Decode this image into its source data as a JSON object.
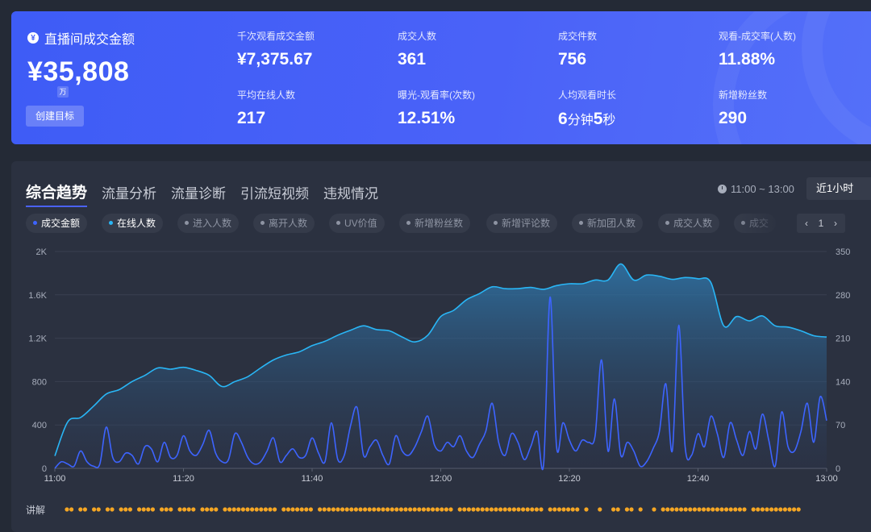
{
  "hero": {
    "title": "直播间成交金额",
    "icon": "yen-icon",
    "value": "¥35,808",
    "unit_badge": "万",
    "create_button": "创建目标",
    "metrics": [
      {
        "label": "千次观看成交金额",
        "value": "¥7,375.67"
      },
      {
        "label": "成交人数",
        "value": "361"
      },
      {
        "label": "成交件数",
        "value": "756"
      },
      {
        "label": "观看-成交率(人数)",
        "value": "11.88%"
      },
      {
        "label": "平均在线人数",
        "value": "217"
      },
      {
        "label": "曝光-观看率(次数)",
        "value": "12.51%"
      },
      {
        "label": "人均观看时长",
        "value_parts": [
          "6",
          "分钟",
          "5",
          "秒"
        ]
      },
      {
        "label": "新增粉丝数",
        "value": "290"
      }
    ]
  },
  "tabs": [
    "综合趋势",
    "流量分析",
    "流量诊断",
    "引流短视频",
    "违规情况"
  ],
  "time_range": {
    "text": "11:00 ~ 13:00",
    "icon": "clock-icon",
    "button": "近1小时"
  },
  "chips": [
    {
      "label": "成交金额",
      "active": true,
      "color": "#3d64ff"
    },
    {
      "label": "在线人数",
      "active": true,
      "color": "#29b6f6"
    },
    {
      "label": "进入人数",
      "active": false
    },
    {
      "label": "离开人数",
      "active": false
    },
    {
      "label": "UV价值",
      "active": false
    },
    {
      "label": "新增粉丝数",
      "active": false
    },
    {
      "label": "新增评论数",
      "active": false
    },
    {
      "label": "新加团人数",
      "active": false
    },
    {
      "label": "成交人数",
      "active": false
    },
    {
      "label": "成交",
      "active": false
    }
  ],
  "pager": {
    "prev": "‹",
    "page": "1",
    "next": "›"
  },
  "explain_label": "讲解",
  "colors": {
    "accent": "#4a62f8",
    "online_line": "#29b6f6",
    "sales_line": "#3d64ff",
    "explain_dot": "#f5a623"
  },
  "chart_data": {
    "type": "line",
    "x_ticks": [
      "11:00",
      "11:20",
      "11:40",
      "12:00",
      "12:20",
      "12:40",
      "13:00"
    ],
    "y_left": {
      "ticks": [
        "0",
        "400",
        "800",
        "1.2K",
        "1.6K",
        "2K"
      ],
      "range": [
        0,
        2000
      ]
    },
    "y_right": {
      "ticks": [
        "0",
        "70",
        "140",
        "210",
        "280",
        "350"
      ],
      "range": [
        0,
        350
      ]
    },
    "grid": true,
    "series": [
      {
        "name": "在线人数",
        "axis": "right",
        "style": "area",
        "x_minutes": [
          0,
          2,
          4,
          6,
          8,
          10,
          12,
          14,
          16,
          18,
          20,
          22,
          24,
          26,
          28,
          30,
          32,
          34,
          36,
          38,
          40,
          42,
          44,
          46,
          48,
          50,
          52,
          54,
          56,
          58,
          60,
          62,
          64,
          66,
          68,
          70,
          72,
          74,
          76,
          78,
          80,
          82,
          84,
          86,
          88,
          90,
          92,
          94,
          96,
          98,
          100,
          102,
          104,
          106,
          108,
          110,
          112,
          114,
          116,
          118,
          120
        ],
        "values": [
          20,
          75,
          82,
          100,
          120,
          127,
          140,
          150,
          162,
          160,
          163,
          158,
          150,
          132,
          140,
          148,
          162,
          175,
          183,
          188,
          198,
          205,
          215,
          223,
          230,
          224,
          222,
          212,
          204,
          215,
          245,
          255,
          272,
          282,
          293,
          290,
          290,
          292,
          289,
          295,
          298,
          298,
          304,
          304,
          330,
          304,
          312,
          310,
          305,
          308,
          306,
          300,
          230,
          245,
          238,
          246,
          230,
          228,
          222,
          214,
          212
        ]
      },
      {
        "name": "成交金额",
        "axis": "left",
        "style": "line",
        "x_minutes": [
          0,
          1,
          2,
          3,
          4,
          5,
          6,
          7,
          8,
          9,
          10,
          11,
          12,
          13,
          14,
          15,
          16,
          17,
          18,
          19,
          20,
          21,
          22,
          23,
          24,
          25,
          26,
          27,
          28,
          29,
          30,
          31,
          32,
          33,
          34,
          35,
          36,
          37,
          38,
          39,
          40,
          41,
          42,
          43,
          44,
          45,
          46,
          47,
          48,
          49,
          50,
          51,
          52,
          53,
          54,
          55,
          56,
          57,
          58,
          59,
          60,
          61,
          62,
          63,
          64,
          65,
          66,
          67,
          68,
          69,
          70,
          71,
          72,
          73,
          74,
          75,
          76,
          77,
          78,
          79,
          80,
          81,
          82,
          83,
          84,
          85,
          86,
          87,
          88,
          89,
          90,
          91,
          92,
          93,
          94,
          95,
          96,
          97,
          98,
          99,
          100,
          101,
          102,
          103,
          104,
          105,
          106,
          107,
          108,
          109,
          110,
          111,
          112,
          113,
          114,
          115,
          116,
          117,
          118,
          119,
          120
        ],
        "values": [
          0,
          60,
          40,
          20,
          160,
          60,
          20,
          40,
          380,
          100,
          60,
          140,
          120,
          40,
          200,
          180,
          60,
          240,
          100,
          120,
          300,
          160,
          120,
          220,
          350,
          140,
          60,
          80,
          320,
          240,
          100,
          40,
          60,
          160,
          280,
          60,
          120,
          180,
          100,
          120,
          280,
          140,
          60,
          420,
          80,
          120,
          400,
          560,
          120,
          200,
          260,
          120,
          40,
          300,
          160,
          120,
          200,
          340,
          480,
          220,
          160,
          240,
          200,
          300,
          160,
          100,
          220,
          340,
          600,
          240,
          120,
          320,
          240,
          80,
          200,
          340,
          40,
          1580,
          200,
          420,
          260,
          160,
          260,
          240,
          300,
          1000,
          160,
          640,
          120,
          240,
          160,
          20,
          60,
          180,
          340,
          780,
          160,
          1320,
          200,
          120,
          320,
          200,
          480,
          320,
          100,
          420,
          260,
          120,
          340,
          180,
          500,
          260,
          20,
          520,
          200,
          160,
          340,
          600,
          240,
          660,
          440
        ]
      }
    ],
    "explain_markers": "sparse dots along bottom indicating explanation periods"
  }
}
